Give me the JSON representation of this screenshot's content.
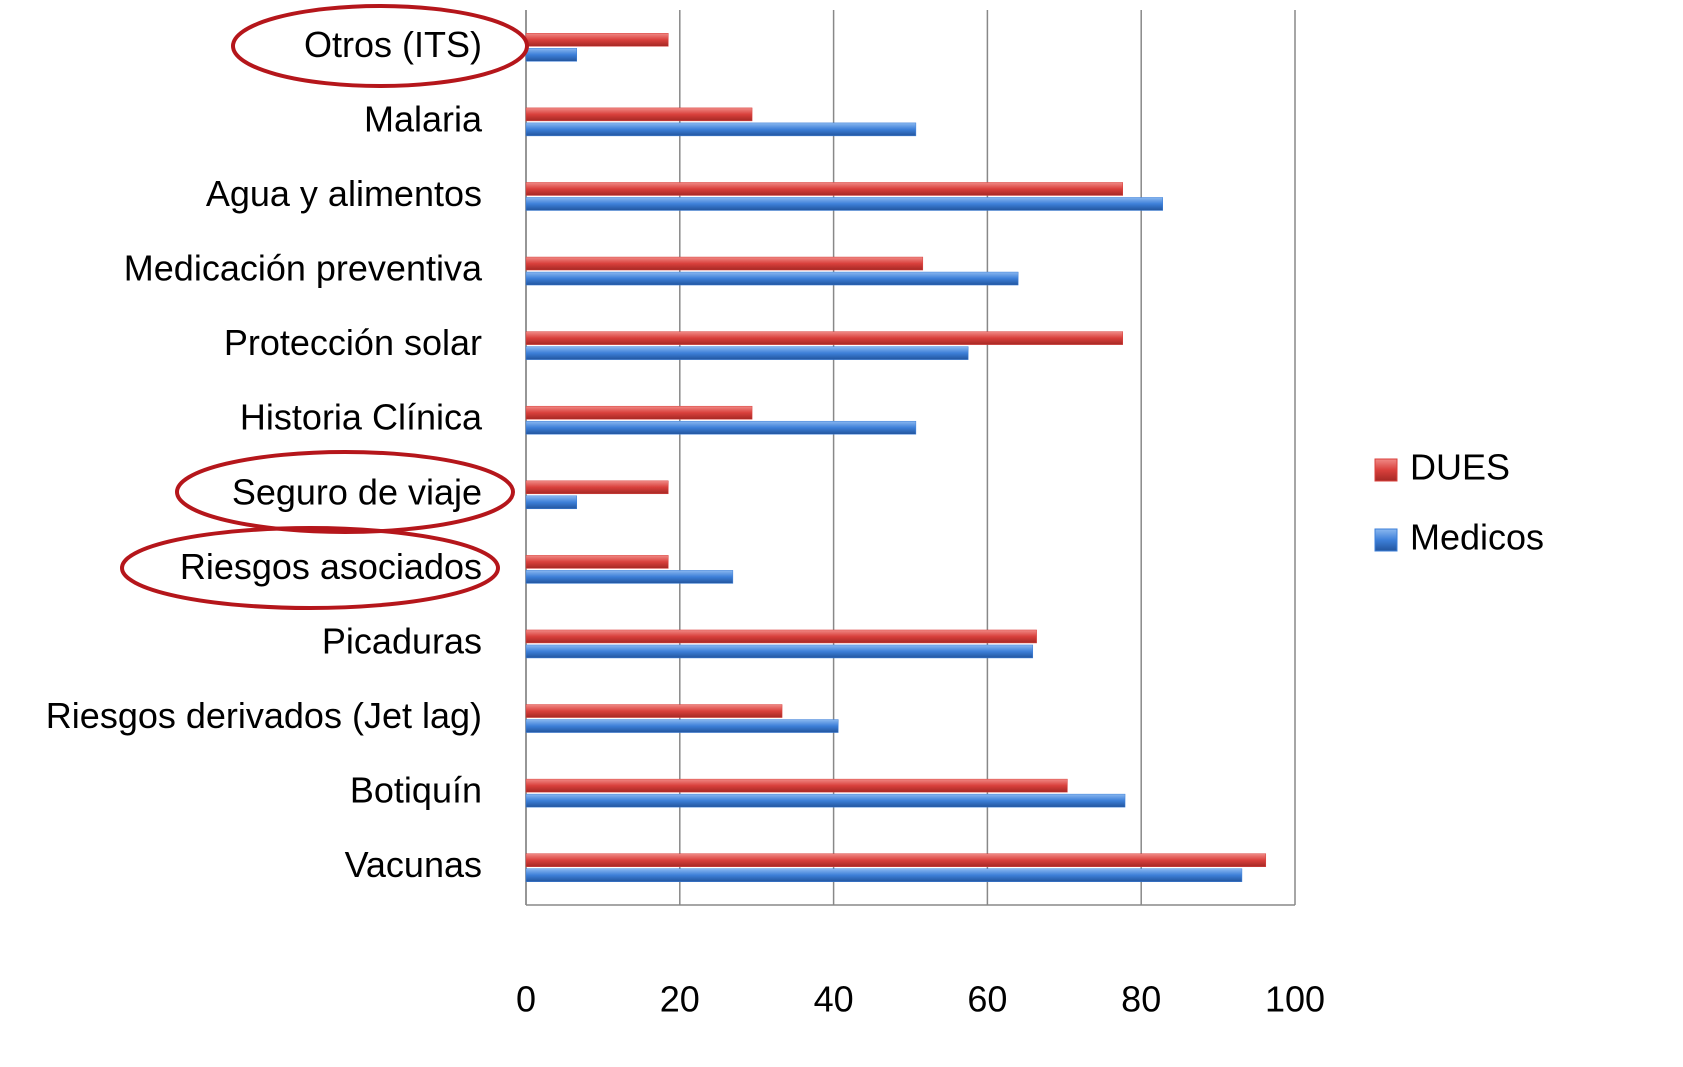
{
  "chart_data": {
    "type": "bar",
    "orientation": "horizontal",
    "categories": [
      "Vacunas",
      "Botiquín",
      "Riesgos derivados (Jet lag)",
      "Picaduras",
      "Riesgos asociados",
      "Seguro de viaje",
      "Historia Clínica",
      "Protección solar",
      "Medicación preventiva",
      "Agua y alimentos",
      "Malaria",
      "Otros (ITS)"
    ],
    "series": [
      {
        "name": "DUES",
        "color": "#d9403c",
        "values": [
          96.2,
          70.4,
          33.3,
          66.4,
          18.5,
          18.5,
          29.4,
          77.6,
          51.6,
          77.6,
          29.4,
          18.5
        ]
      },
      {
        "name": "Medicos",
        "color": "#3d7fd8",
        "values": [
          93.1,
          77.9,
          40.6,
          65.9,
          26.9,
          6.6,
          50.7,
          57.5,
          64.0,
          82.8,
          50.7,
          6.6
        ]
      }
    ],
    "xlim": [
      0,
      100
    ],
    "xticks": [
      0,
      20,
      40,
      60,
      80,
      100
    ],
    "grid": true,
    "legend": "right"
  }
}
